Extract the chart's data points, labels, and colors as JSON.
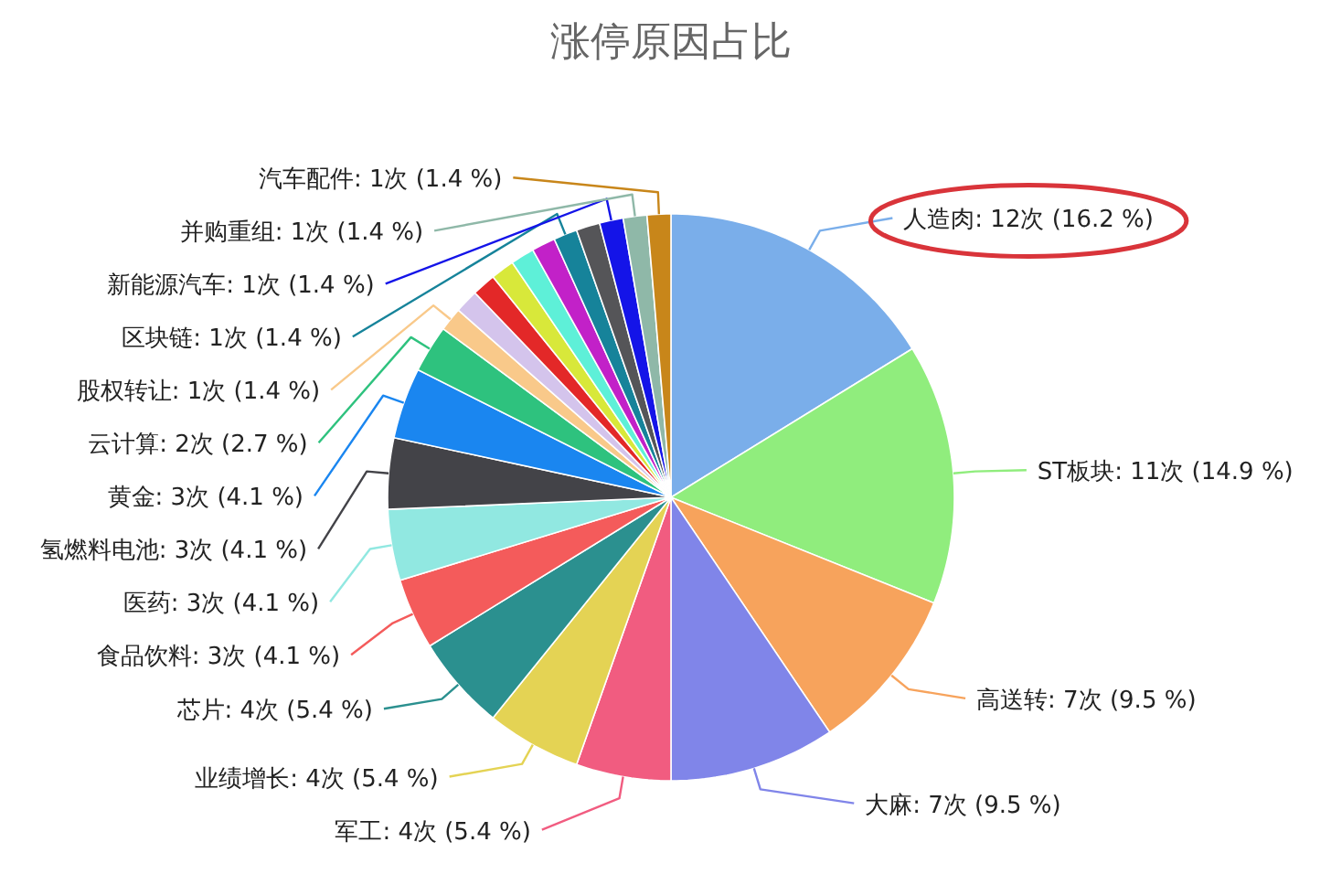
{
  "chart_data": {
    "type": "pie",
    "title": "涨停原因占比",
    "categories": [
      "人造肉",
      "ST板块",
      "高送转",
      "大麻",
      "军工",
      "业绩增长",
      "芯片",
      "食品饮料",
      "医药",
      "氢燃料电池",
      "黄金",
      "云计算",
      "股权转让",
      null,
      null,
      null,
      null,
      null,
      "区块链",
      null,
      "新能源汽车",
      "并购重组",
      "汽车配件"
    ],
    "values": [
      12,
      11,
      7,
      7,
      4,
      4,
      4,
      3,
      3,
      3,
      3,
      2,
      1,
      1,
      1,
      1,
      1,
      1,
      1,
      1,
      1,
      1,
      1
    ],
    "value_labels": [
      "12次 (16.2 %)",
      "11次 (14.9 %)",
      "7次 (9.5 %)",
      "7次 (9.5 %)",
      "4次 (5.4 %)",
      "4次 (5.4 %)",
      "4次 (5.4 %)",
      "3次 (4.1 %)",
      "3次 (4.1 %)",
      "3次 (4.1 %)",
      "3次 (4.1 %)",
      "2次 (2.7 %)",
      "1次 (1.4 %)",
      null,
      null,
      null,
      null,
      null,
      "1次 (1.4 %)",
      null,
      "1次 (1.4 %)",
      "1次 (1.4 %)",
      "1次 (1.4 %)"
    ],
    "colors": [
      "#7aaeea",
      "#90ed7d",
      "#f7a35c",
      "#8085e9",
      "#f15c80",
      "#e4d354",
      "#2b908f",
      "#f45b5b",
      "#91e8e1",
      "#434348",
      "#1a86f0",
      "#2ec27e",
      "#f9c98a",
      "#d4c4ec",
      "#e32828",
      "#d8e83a",
      "#5ef0d8",
      "#c221c8",
      "#16839a",
      "#555558",
      "#1414e8",
      "#8fb8a8",
      "#c8861a"
    ]
  }
}
